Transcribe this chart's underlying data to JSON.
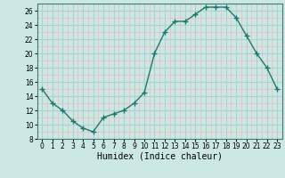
{
  "x": [
    0,
    1,
    2,
    3,
    4,
    5,
    6,
    7,
    8,
    9,
    10,
    11,
    12,
    13,
    14,
    15,
    16,
    17,
    18,
    19,
    20,
    21,
    22,
    23
  ],
  "y": [
    15,
    13,
    12,
    10.5,
    9.5,
    9,
    11,
    11.5,
    12,
    13,
    14.5,
    20,
    23,
    24.5,
    24.5,
    25.5,
    26.5,
    26.5,
    26.5,
    25,
    22.5,
    20,
    18,
    15
  ],
  "line_color": "#1a7a6e",
  "marker": "+",
  "marker_size": 4,
  "bg_color": "#cce8e4",
  "plot_bg_color": "#cce8e4",
  "grid_major_color": "#b0d0cc",
  "grid_minor_color": "#e8c0c0",
  "xlabel": "Humidex (Indice chaleur)",
  "xlim": [
    -0.5,
    23.5
  ],
  "ylim": [
    8,
    27
  ],
  "yticks": [
    8,
    10,
    12,
    14,
    16,
    18,
    20,
    22,
    24,
    26
  ],
  "xticks": [
    0,
    1,
    2,
    3,
    4,
    5,
    6,
    7,
    8,
    9,
    10,
    11,
    12,
    13,
    14,
    15,
    16,
    17,
    18,
    19,
    20,
    21,
    22,
    23
  ],
  "tick_fontsize": 5.5,
  "label_fontsize": 7,
  "line_width": 1.0,
  "marker_color": "#1a7a6e"
}
